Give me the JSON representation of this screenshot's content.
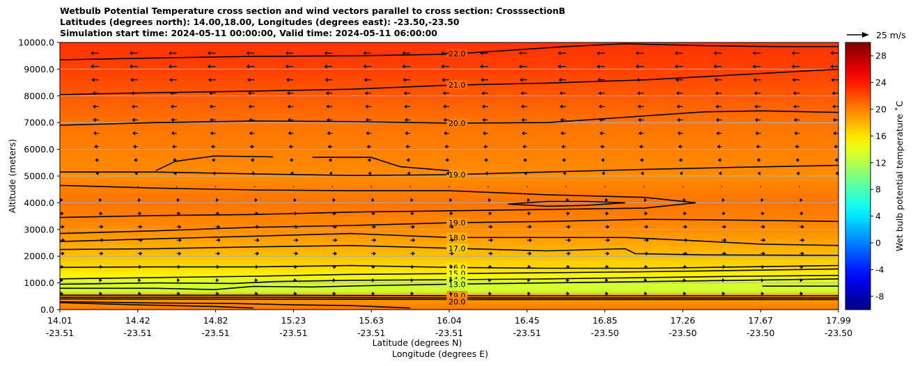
{
  "title_lines": [
    "Wetbulb Potential Temperature cross section and wind vectors parallel to cross section: CrosssectionB",
    "Latitudes (degrees north): 14.00,18.00, Longitudes (degrees east): -23.50,-23.50",
    "Simulation start time: 2024-05-11 00:00:00, Valid time: 2024-05-11 06:00:00"
  ],
  "chart_data": {
    "type": "heatmap",
    "xlabel": "Latitude (degrees N)",
    "xlabel2": "Longitude (degrees E)",
    "ylabel": "Altitude (meters)",
    "xlim": [
      14.01,
      17.99
    ],
    "ylim": [
      0,
      10000
    ],
    "x_ticks": [
      {
        "lat": "14.01",
        "lon": "-23.51"
      },
      {
        "lat": "14.42",
        "lon": "-23.51"
      },
      {
        "lat": "14.82",
        "lon": "-23.51"
      },
      {
        "lat": "15.23",
        "lon": "-23.51"
      },
      {
        "lat": "15.63",
        "lon": "-23.51"
      },
      {
        "lat": "16.04",
        "lon": "-23.51"
      },
      {
        "lat": "16.45",
        "lon": "-23.51"
      },
      {
        "lat": "16.85",
        "lon": "-23.50"
      },
      {
        "lat": "17.26",
        "lon": "-23.50"
      },
      {
        "lat": "17.67",
        "lon": "-23.50"
      },
      {
        "lat": "17.99",
        "lon": "-23.50"
      }
    ],
    "y_ticks": [
      "0.0",
      "1000.0",
      "2000.0",
      "3000.0",
      "4000.0",
      "5000.0",
      "6000.0",
      "7000.0",
      "8000.0",
      "9000.0",
      "10000.0"
    ],
    "y_tick_values": [
      0,
      1000,
      2000,
      3000,
      4000,
      5000,
      6000,
      7000,
      8000,
      9000,
      10000
    ],
    "grid": "horizontal",
    "colorbar": {
      "label": "Wet bulb potential temperature ˚C",
      "range": [
        -10,
        30
      ],
      "ticks": [
        "-8",
        "-4",
        "0",
        "4",
        "8",
        "12",
        "16",
        "20",
        "24",
        "28"
      ],
      "tick_values": [
        -8,
        -4,
        0,
        4,
        8,
        12,
        16,
        20,
        24,
        28
      ],
      "colormap": "jet"
    },
    "quiver_key": {
      "label": "25 m/s"
    },
    "field_bands": [
      {
        "altitude": 0,
        "value": 20.5
      },
      {
        "altitude": 200,
        "value": 19.5
      },
      {
        "altitude": 500,
        "value": 19.0
      },
      {
        "altitude": 700,
        "value": 13.0
      },
      {
        "altitude": 1000,
        "value": 13.5
      },
      {
        "altitude": 1300,
        "value": 15.5
      },
      {
        "altitude": 1600,
        "value": 16.5
      },
      {
        "altitude": 2000,
        "value": 17.5
      },
      {
        "altitude": 2500,
        "value": 18.5
      },
      {
        "altitude": 3000,
        "value": 19.5
      },
      {
        "altitude": 4000,
        "value": 20.5
      },
      {
        "altitude": 5000,
        "value": 19.5
      },
      {
        "altitude": 6000,
        "value": 20.0
      },
      {
        "altitude": 7000,
        "value": 20.5
      },
      {
        "altitude": 8000,
        "value": 21.5
      },
      {
        "altitude": 9000,
        "value": 22.5
      },
      {
        "altitude": 10000,
        "value": 23.0
      }
    ],
    "contours": [
      {
        "label": "22.0",
        "level": 22,
        "points": [
          [
            14.01,
            9350
          ],
          [
            14.5,
            9420
          ],
          [
            15.0,
            9480
          ],
          [
            15.5,
            9500
          ],
          [
            16.0,
            9560
          ],
          [
            16.3,
            9700
          ],
          [
            16.6,
            9850
          ],
          [
            16.9,
            9950
          ],
          [
            17.3,
            9880
          ],
          [
            17.7,
            9840
          ],
          [
            17.99,
            9840
          ]
        ]
      },
      {
        "label": "21.0",
        "level": 21,
        "points": [
          [
            14.01,
            8050
          ],
          [
            14.5,
            8120
          ],
          [
            15.0,
            8180
          ],
          [
            15.5,
            8250
          ],
          [
            16.0,
            8400
          ],
          [
            16.5,
            8480
          ],
          [
            17.0,
            8600
          ],
          [
            17.5,
            8800
          ],
          [
            17.99,
            9000
          ]
        ]
      },
      {
        "label": "20.0",
        "level": 20,
        "points": [
          [
            14.01,
            6900
          ],
          [
            14.5,
            7000
          ],
          [
            15.0,
            7060
          ],
          [
            15.5,
            7040
          ],
          [
            16.0,
            6980
          ],
          [
            16.5,
            7000
          ],
          [
            17.0,
            7250
          ],
          [
            17.3,
            7400
          ],
          [
            17.6,
            7440
          ],
          [
            17.99,
            7380
          ]
        ]
      },
      {
        "label": "19.0",
        "level": 19,
        "points": [
          [
            14.01,
            5150
          ],
          [
            14.5,
            5150
          ],
          [
            15.0,
            5080
          ],
          [
            15.5,
            5020
          ],
          [
            16.0,
            5050
          ],
          [
            16.5,
            5150
          ],
          [
            17.0,
            5250
          ],
          [
            17.5,
            5330
          ],
          [
            17.99,
            5400
          ]
        ]
      },
      {
        "label": "",
        "level": 21,
        "points": [
          [
            14.01,
            4650
          ],
          [
            14.5,
            4550
          ],
          [
            15.0,
            4480
          ],
          [
            15.5,
            4450
          ],
          [
            16.0,
            4450
          ],
          [
            16.5,
            4300
          ],
          [
            17.0,
            4200
          ],
          [
            17.26,
            4000
          ],
          [
            17.0,
            3800
          ],
          [
            16.5,
            3750
          ],
          [
            16.0,
            3700
          ],
          [
            15.5,
            3650
          ],
          [
            15.0,
            3560
          ],
          [
            14.5,
            3520
          ],
          [
            14.01,
            3450
          ]
        ]
      },
      {
        "label": "",
        "level": 21,
        "points": [
          [
            16.3,
            3950
          ],
          [
            16.5,
            4050
          ],
          [
            16.7,
            4050
          ],
          [
            16.9,
            4000
          ],
          [
            16.7,
            3900
          ],
          [
            16.5,
            3870
          ],
          [
            16.3,
            3950
          ]
        ]
      },
      {
        "label": "",
        "level": 19,
        "points": [
          [
            14.5,
            5200
          ],
          [
            14.6,
            5550
          ],
          [
            14.8,
            5750
          ],
          [
            15.1,
            5720
          ]
        ]
      },
      {
        "label": "",
        "level": 19,
        "points": [
          [
            15.3,
            5700
          ],
          [
            15.6,
            5700
          ],
          [
            15.75,
            5350
          ],
          [
            16.0,
            5200
          ]
        ]
      },
      {
        "label": "19.0",
        "level": 19,
        "points": [
          [
            14.01,
            2850
          ],
          [
            14.5,
            2950
          ],
          [
            15.0,
            3080
          ],
          [
            15.5,
            3150
          ],
          [
            16.0,
            3250
          ],
          [
            16.5,
            3300
          ],
          [
            17.0,
            3380
          ],
          [
            17.5,
            3350
          ],
          [
            17.99,
            3300
          ]
        ]
      },
      {
        "label": "18.0",
        "level": 18,
        "points": [
          [
            14.01,
            2550
          ],
          [
            14.5,
            2650
          ],
          [
            15.0,
            2750
          ],
          [
            15.5,
            2850
          ],
          [
            16.0,
            2700
          ],
          [
            16.5,
            2700
          ],
          [
            16.9,
            2700
          ],
          [
            17.2,
            2600
          ],
          [
            17.6,
            2450
          ],
          [
            17.99,
            2400
          ]
        ]
      },
      {
        "label": "17.0",
        "level": 17,
        "points": [
          [
            14.01,
            2250
          ],
          [
            14.5,
            2280
          ],
          [
            15.0,
            2350
          ],
          [
            15.5,
            2400
          ],
          [
            16.0,
            2300
          ],
          [
            16.5,
            2200
          ],
          [
            16.9,
            2280
          ],
          [
            16.95,
            2100
          ],
          [
            17.3,
            2050
          ],
          [
            17.99,
            2030
          ]
        ]
      },
      {
        "label": "16.0",
        "level": 16,
        "points": [
          [
            14.01,
            1580
          ],
          [
            14.5,
            1600
          ],
          [
            15.0,
            1600
          ],
          [
            15.5,
            1650
          ],
          [
            16.0,
            1580
          ],
          [
            16.5,
            1550
          ],
          [
            17.0,
            1550
          ],
          [
            17.5,
            1600
          ],
          [
            17.99,
            1650
          ]
        ]
      },
      {
        "label": "15.0",
        "level": 15,
        "points": [
          [
            14.01,
            1150
          ],
          [
            14.5,
            1200
          ],
          [
            15.0,
            1250
          ],
          [
            15.5,
            1320
          ],
          [
            16.0,
            1350
          ],
          [
            16.5,
            1380
          ],
          [
            17.0,
            1420
          ],
          [
            17.5,
            1470
          ],
          [
            17.99,
            1520
          ]
        ]
      },
      {
        "label": "14.0",
        "level": 14,
        "points": [
          [
            14.01,
            950
          ],
          [
            14.5,
            1000
          ],
          [
            14.9,
            980
          ],
          [
            15.1,
            1050
          ],
          [
            15.5,
            1100
          ],
          [
            16.0,
            1120
          ],
          [
            16.5,
            1150
          ],
          [
            17.0,
            1200
          ],
          [
            17.5,
            1250
          ],
          [
            17.99,
            1280
          ]
        ]
      },
      {
        "label": "13.0",
        "level": 13,
        "points": [
          [
            14.01,
            800
          ],
          [
            14.5,
            800
          ],
          [
            14.8,
            750
          ],
          [
            15.0,
            870
          ],
          [
            15.3,
            850
          ],
          [
            15.6,
            900
          ],
          [
            16.0,
            950
          ],
          [
            16.5,
            1000
          ],
          [
            17.0,
            1050
          ],
          [
            17.5,
            1100
          ],
          [
            17.99,
            1150
          ]
        ]
      },
      {
        "label": "",
        "level": 13,
        "points": [
          [
            17.6,
            880
          ],
          [
            17.8,
            880
          ],
          [
            17.99,
            880
          ]
        ]
      },
      {
        "label": "19.0",
        "level": 19,
        "points": [
          [
            14.01,
            540
          ],
          [
            15.0,
            540
          ],
          [
            16.0,
            520
          ],
          [
            17.0,
            520
          ],
          [
            17.99,
            520
          ]
        ]
      },
      {
        "label": "",
        "level": 19,
        "points": [
          [
            14.01,
            460
          ],
          [
            15.0,
            460
          ],
          [
            16.0,
            440
          ],
          [
            17.0,
            440
          ],
          [
            17.99,
            440
          ]
        ]
      },
      {
        "label": "",
        "level": 19,
        "points": [
          [
            14.01,
            400
          ],
          [
            15.0,
            390
          ],
          [
            16.0,
            380
          ],
          [
            17.0,
            380
          ],
          [
            17.99,
            380
          ]
        ]
      },
      {
        "label": "20.0",
        "level": 20,
        "points": [
          [
            14.01,
            300
          ],
          [
            14.5,
            250
          ],
          [
            14.9,
            230
          ],
          [
            15.2,
            180
          ],
          [
            15.5,
            150
          ],
          [
            15.8,
            60
          ]
        ]
      },
      {
        "label": "",
        "level": 20,
        "points": [
          [
            14.01,
            260
          ],
          [
            14.4,
            180
          ],
          [
            14.8,
            120
          ],
          [
            15.0,
            60
          ]
        ]
      }
    ],
    "wind_rows": [
      {
        "altitude": 9600,
        "u": -14
      },
      {
        "altitude": 9100,
        "u": -14
      },
      {
        "altitude": 8600,
        "u": -12
      },
      {
        "altitude": 8100,
        "u": -10
      },
      {
        "altitude": 7600,
        "u": -9
      },
      {
        "altitude": 7100,
        "u": -8
      },
      {
        "altitude": 6600,
        "u": -7
      },
      {
        "altitude": 6100,
        "u": -5
      },
      {
        "altitude": 5600,
        "u": -3
      },
      {
        "altitude": 5100,
        "u": -1
      },
      {
        "altitude": 4600,
        "u": 0.5
      },
      {
        "altitude": 4100,
        "u": 1
      },
      {
        "altitude": 3600,
        "u": 3
      },
      {
        "altitude": 3100,
        "u": 5
      },
      {
        "altitude": 2600,
        "u": 6
      },
      {
        "altitude": 2100,
        "u": 5
      },
      {
        "altitude": 1600,
        "u": 3
      },
      {
        "altitude": 1100,
        "u": 1.5
      },
      {
        "altitude": 600,
        "u": 2
      }
    ]
  }
}
